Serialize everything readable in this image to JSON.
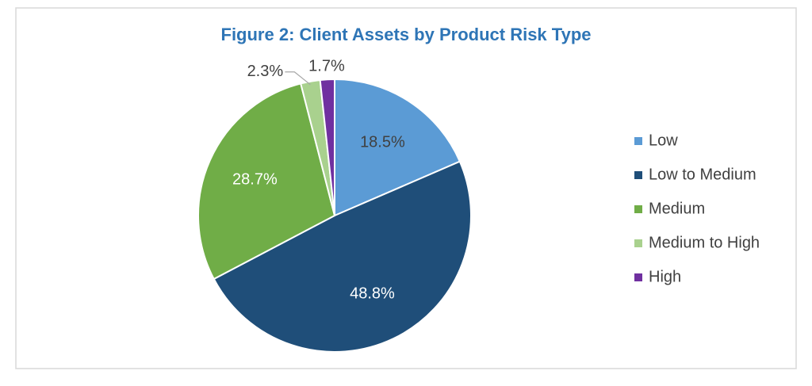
{
  "chart_data": {
    "type": "pie",
    "title": "Figure 2: Client Assets by Product Risk Type",
    "categories": [
      "Low",
      "Low to Medium",
      "Medium",
      "Medium to High",
      "High"
    ],
    "values": [
      18.5,
      48.8,
      28.7,
      2.3,
      1.7
    ],
    "value_labels": [
      "18.5%",
      "48.8%",
      "28.7%",
      "2.3%",
      "1.7%"
    ],
    "colors": [
      "#5b9bd5",
      "#1f4e79",
      "#70ad47",
      "#a9d18e",
      "#7030a0"
    ],
    "legend": "right"
  }
}
